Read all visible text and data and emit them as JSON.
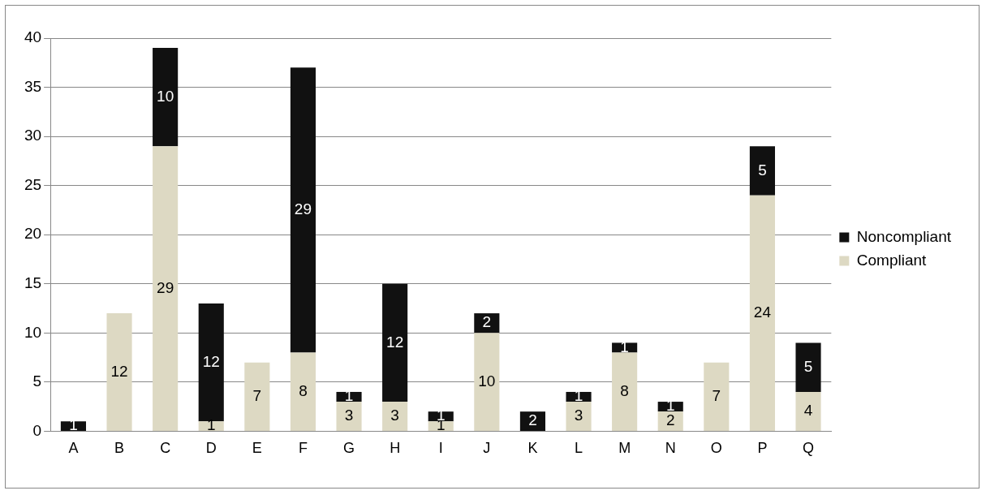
{
  "chart_data": {
    "type": "bar",
    "stacked": true,
    "categories": [
      "A",
      "B",
      "C",
      "D",
      "E",
      "F",
      "G",
      "H",
      "I",
      "J",
      "K",
      "L",
      "M",
      "N",
      "O",
      "P",
      "Q"
    ],
    "series": [
      {
        "name": "Compliant",
        "color": "#ddd9c3",
        "values": [
          0,
          12,
          29,
          1,
          7,
          8,
          3,
          3,
          1,
          10,
          0,
          3,
          8,
          2,
          7,
          24,
          4
        ],
        "value_labels": [
          null,
          "12",
          "29",
          "1",
          "7",
          "8",
          "3",
          "3",
          "1",
          "10",
          null,
          "3",
          "8",
          "2",
          "7",
          "24",
          "4"
        ]
      },
      {
        "name": "Noncompliant",
        "color": "#111111",
        "values": [
          1,
          0,
          10,
          12,
          0,
          29,
          1,
          12,
          1,
          2,
          2,
          1,
          1,
          1,
          0,
          5,
          5
        ],
        "value_labels": [
          "1",
          null,
          "10",
          "12",
          null,
          "29",
          "1",
          "12",
          "1",
          "2",
          "2",
          "1",
          "1",
          "1",
          null,
          "5",
          "5"
        ]
      }
    ],
    "ylim": [
      0,
      40
    ],
    "yticks": [
      0,
      5,
      10,
      15,
      20,
      25,
      30,
      35,
      40
    ],
    "grid": "y",
    "legend": "right"
  }
}
